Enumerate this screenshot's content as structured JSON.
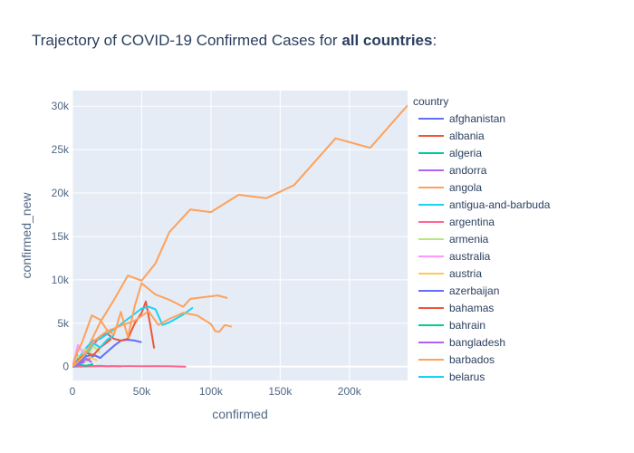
{
  "chart_data": {
    "type": "line",
    "title": {
      "prefix": "Trajectory of COVID-19 Confirmed Cases for ",
      "emphasis": "all countries",
      "suffix": ":"
    },
    "xlabel": "confirmed",
    "ylabel": "confirmed_new",
    "xlim": [
      0,
      242000
    ],
    "ylim": [
      -1600,
      31800
    ],
    "x_ticks": [
      0,
      50000,
      100000,
      150000,
      200000
    ],
    "x_tick_labels": [
      "0",
      "50k",
      "100k",
      "150k",
      "200k"
    ],
    "y_ticks": [
      0,
      5000,
      10000,
      15000,
      20000,
      25000,
      30000
    ],
    "y_tick_labels": [
      "0",
      "5k",
      "10k",
      "15k",
      "20k",
      "25k",
      "30k"
    ],
    "grid": true,
    "legend_title": "country",
    "legend_position": "right",
    "colors": {
      "plot_bg": "#E5ECF6",
      "grid": "#ffffff",
      "text": "#2a3f5f"
    },
    "series": [
      {
        "name": "afghanistan",
        "color": "#636EFA",
        "points": [
          [
            0,
            0
          ],
          [
            4000,
            300
          ],
          [
            8000,
            500
          ],
          [
            12000,
            900
          ],
          [
            16000,
            1300
          ],
          [
            20000,
            1000
          ],
          [
            25000,
            1700
          ],
          [
            30000,
            2400
          ],
          [
            35000,
            3000
          ],
          [
            40000,
            3100
          ],
          [
            45000,
            3000
          ],
          [
            50000,
            2800
          ]
        ]
      },
      {
        "name": "albania",
        "color": "#EF553B",
        "points": [
          [
            0,
            0
          ],
          [
            5000,
            400
          ],
          [
            10000,
            1500
          ],
          [
            15000,
            2500
          ],
          [
            20000,
            3500
          ],
          [
            25000,
            3800
          ],
          [
            30000,
            3200
          ],
          [
            35000,
            3000
          ],
          [
            40000,
            3200
          ],
          [
            45000,
            5000
          ],
          [
            50000,
            6200
          ],
          [
            53000,
            7500
          ],
          [
            56000,
            5000
          ],
          [
            59000,
            2100
          ]
        ]
      },
      {
        "name": "algeria",
        "color": "#00CC96",
        "points": [
          [
            0,
            0
          ],
          [
            5000,
            50
          ],
          [
            10000,
            80
          ],
          [
            15000,
            60
          ],
          [
            20000,
            90
          ],
          [
            25000,
            40
          ],
          [
            30000,
            60
          ],
          [
            35000,
            30
          ]
        ]
      },
      {
        "name": "andorra",
        "color": "#AB63FA",
        "points": [
          [
            0,
            0
          ],
          [
            1000,
            200
          ],
          [
            2000,
            800
          ],
          [
            3000,
            1500
          ],
          [
            4000,
            900
          ],
          [
            5000,
            500
          ],
          [
            6000,
            200
          ],
          [
            7000,
            50
          ]
        ]
      },
      {
        "name": "angola",
        "color": "#FFA15A",
        "points": [
          [
            0,
            0
          ],
          [
            10000,
            1800
          ],
          [
            20000,
            5100
          ],
          [
            30000,
            7700
          ],
          [
            40000,
            10500
          ],
          [
            50000,
            9900
          ],
          [
            60000,
            11900
          ],
          [
            70000,
            15500
          ],
          [
            85000,
            18100
          ],
          [
            100000,
            17800
          ],
          [
            120000,
            19800
          ],
          [
            140000,
            19400
          ],
          [
            160000,
            20900
          ],
          [
            190000,
            26300
          ],
          [
            215000,
            25200
          ],
          [
            242000,
            30100
          ]
        ]
      },
      {
        "name": "antigua-and-barbuda",
        "color": "#19D3F3",
        "points": [
          [
            0,
            0
          ],
          [
            10000,
            2200
          ],
          [
            15000,
            3000
          ],
          [
            20000,
            3200
          ],
          [
            30000,
            4300
          ],
          [
            40000,
            5500
          ],
          [
            50000,
            6700
          ],
          [
            55000,
            6900
          ],
          [
            60000,
            6600
          ],
          [
            65000,
            4800
          ],
          [
            70000,
            5100
          ],
          [
            80000,
            6000
          ],
          [
            87000,
            6800
          ]
        ]
      },
      {
        "name": "argentina",
        "color": "#FF6692",
        "points": [
          [
            0,
            0
          ],
          [
            10000,
            20
          ],
          [
            20000,
            40
          ],
          [
            30000,
            50
          ],
          [
            40000,
            60
          ],
          [
            50000,
            40
          ],
          [
            60000,
            60
          ],
          [
            70000,
            40
          ],
          [
            82000,
            0
          ]
        ]
      },
      {
        "name": "armenia",
        "color": "#B6E880",
        "points": [
          [
            0,
            0
          ],
          [
            3000,
            1200
          ],
          [
            6000,
            800
          ],
          [
            9000,
            2100
          ],
          [
            12000,
            1400
          ],
          [
            15000,
            2400
          ],
          [
            18000,
            1900
          ],
          [
            20000,
            1600
          ]
        ]
      },
      {
        "name": "australia",
        "color": "#FF97FF",
        "points": [
          [
            0,
            0
          ],
          [
            4000,
            2500
          ],
          [
            7000,
            1800
          ],
          [
            10000,
            1500
          ],
          [
            13000,
            2200
          ],
          [
            16000,
            2700
          ],
          [
            19000,
            2300
          ]
        ]
      },
      {
        "name": "austria",
        "color": "#FECB52",
        "points": [
          [
            0,
            0
          ],
          [
            3000,
            300
          ],
          [
            6000,
            1200
          ],
          [
            9000,
            600
          ],
          [
            12000,
            1100
          ],
          [
            15000,
            900
          ],
          [
            18000,
            700
          ]
        ]
      },
      {
        "name": "azerbaijan",
        "color": "#636EFA",
        "points": [
          [
            0,
            0
          ],
          [
            5000,
            600
          ],
          [
            10000,
            1200
          ],
          [
            15000,
            1400
          ],
          [
            20000,
            1000
          ]
        ]
      },
      {
        "name": "bahamas",
        "color": "#EF553B",
        "points": [
          [
            0,
            0
          ],
          [
            5000,
            900
          ],
          [
            10000,
            1600
          ],
          [
            15000,
            1300
          ],
          [
            20000,
            2200
          ],
          [
            25000,
            2800
          ],
          [
            28000,
            3200
          ]
        ]
      },
      {
        "name": "bahrain",
        "color": "#00CC96",
        "points": [
          [
            0,
            0
          ],
          [
            5000,
            200
          ],
          [
            10000,
            100
          ],
          [
            15000,
            300
          ]
        ]
      },
      {
        "name": "bangladesh",
        "color": "#AB63FA",
        "points": [
          [
            0,
            0
          ],
          [
            5000,
            300
          ],
          [
            10000,
            900
          ],
          [
            14000,
            500
          ]
        ]
      },
      {
        "name": "barbados",
        "color": "#FFA15A",
        "points": [
          [
            0,
            0
          ],
          [
            3000,
            1500
          ],
          [
            7000,
            2800
          ],
          [
            14000,
            5900
          ],
          [
            20000,
            5400
          ],
          [
            25000,
            4200
          ],
          [
            30000,
            3700
          ],
          [
            35000,
            6300
          ],
          [
            40000,
            3400
          ],
          [
            45000,
            7000
          ],
          [
            50000,
            9600
          ],
          [
            60000,
            8300
          ],
          [
            70000,
            7700
          ],
          [
            80000,
            6900
          ],
          [
            85000,
            7800
          ],
          [
            95000,
            8000
          ],
          [
            105000,
            8200
          ],
          [
            112000,
            7900
          ]
        ]
      },
      {
        "name": "belarus",
        "color": "#19D3F3",
        "points": [
          [
            0,
            0
          ],
          [
            5000,
            700
          ],
          [
            10000,
            1500
          ],
          [
            15000,
            2700
          ],
          [
            20000,
            2200
          ],
          [
            25000,
            3100
          ],
          [
            30000,
            3600
          ]
        ]
      },
      {
        "name": "",
        "color": "#FFA15A",
        "points": [
          [
            0,
            0
          ],
          [
            8000,
            1200
          ],
          [
            15000,
            2900
          ],
          [
            25000,
            4100
          ],
          [
            35000,
            4700
          ],
          [
            45000,
            5300
          ],
          [
            55000,
            6400
          ],
          [
            62000,
            4800
          ],
          [
            70000,
            5500
          ],
          [
            80000,
            6200
          ],
          [
            90000,
            5900
          ],
          [
            100000,
            4900
          ],
          [
            103000,
            4100
          ],
          [
            106000,
            4000
          ],
          [
            110000,
            4800
          ],
          [
            115000,
            4600
          ]
        ]
      }
    ]
  }
}
